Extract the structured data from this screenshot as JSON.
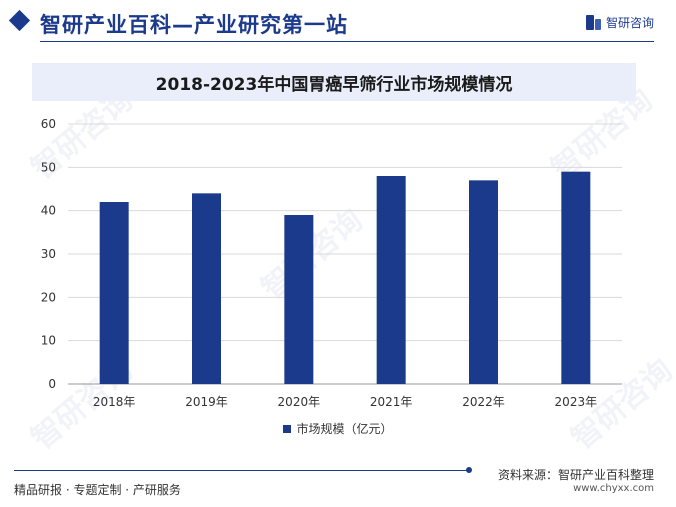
{
  "header": {
    "title": "智研产业百科—产业研究第一站",
    "logo_text": "智研咨询"
  },
  "chart_data": {
    "type": "bar",
    "title": "2018-2023年中国胃癌早筛行业市场规模情况",
    "categories": [
      "2018年",
      "2019年",
      "2020年",
      "2021年",
      "2022年",
      "2023年"
    ],
    "series": [
      {
        "name": "市场规模（亿元）",
        "values": [
          42,
          44,
          39,
          48,
          47,
          49
        ]
      }
    ],
    "ylim": [
      0,
      60
    ],
    "yticks": [
      "0",
      "10",
      "20",
      "30",
      "40",
      "50",
      "60"
    ],
    "grid": true,
    "legend_position": "bottom",
    "bar_color": "#1b3a8c"
  },
  "footer": {
    "left": "精品研报 · 专题定制 · 产研服务",
    "source": "资料来源：智研产业百科整理",
    "url": "www.chyxx.com"
  },
  "watermark_text": "智研咨询"
}
